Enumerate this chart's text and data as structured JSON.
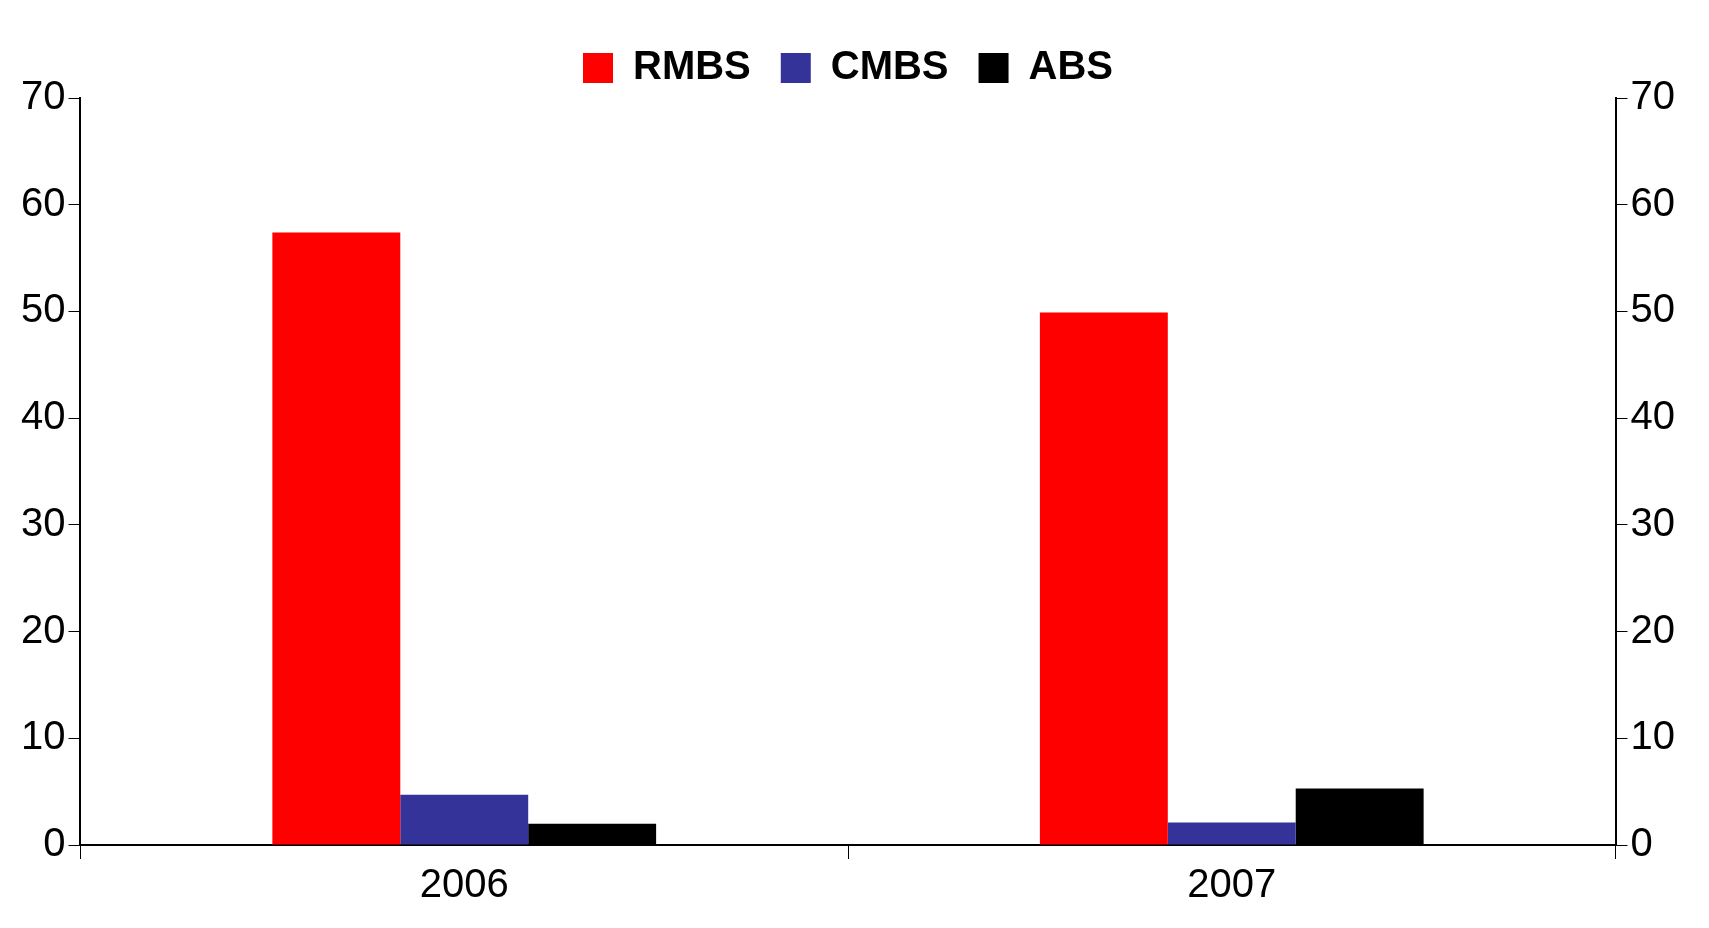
{
  "chart_data": {
    "type": "bar",
    "categories": [
      "2006",
      "2007"
    ],
    "series": [
      {
        "name": "RMBS",
        "color": "#ff0000",
        "values": [
          57.4,
          49.9
        ]
      },
      {
        "name": "CMBS",
        "color": "#333399",
        "values": [
          4.7,
          2.1
        ]
      },
      {
        "name": "ABS",
        "color": "#000000",
        "values": [
          2.0,
          5.3
        ]
      }
    ],
    "ylim": [
      0,
      70
    ],
    "yticks": [
      0,
      10,
      20,
      30,
      40,
      50,
      60,
      70
    ],
    "y2lim": [
      0,
      70
    ],
    "y2ticks": [
      0,
      10,
      20,
      30,
      40,
      50,
      60,
      70
    ],
    "grid": false,
    "legend": "top"
  }
}
